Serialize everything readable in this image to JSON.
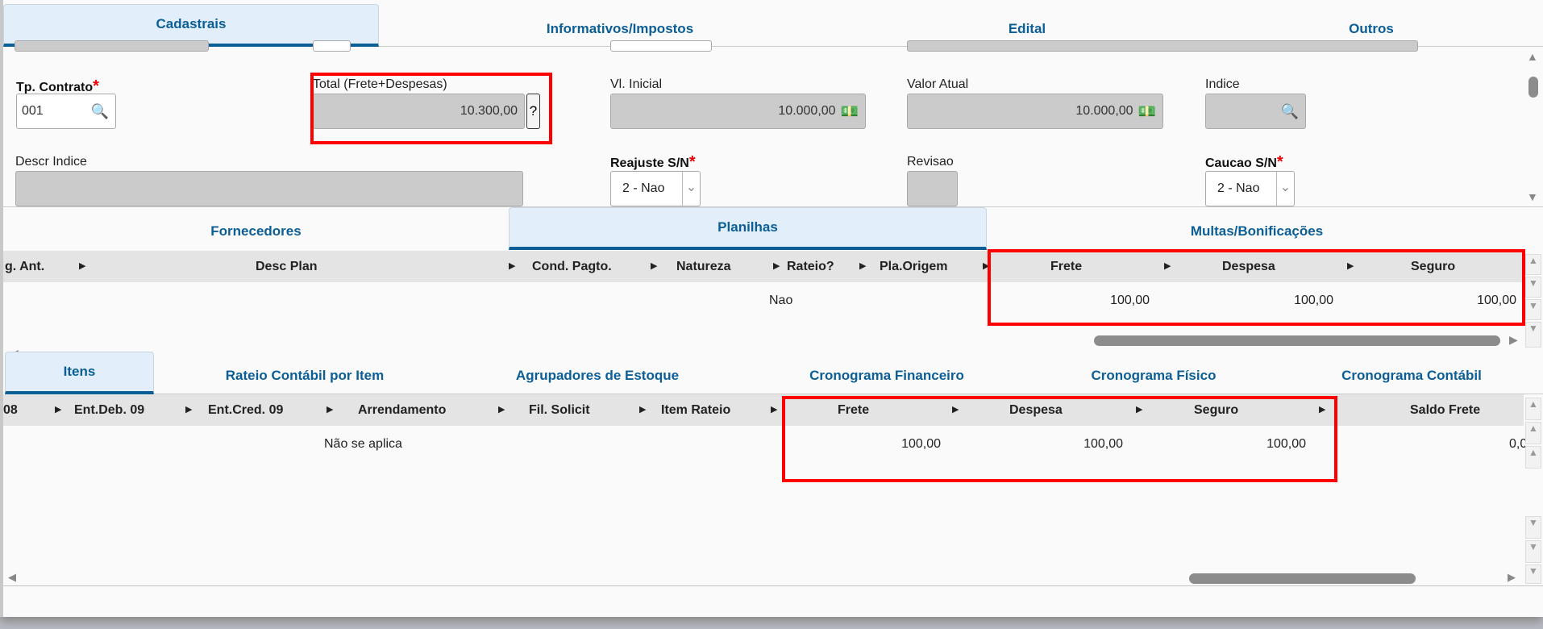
{
  "top_tabs": [
    "Cadastrais",
    "Informativos/Impostos",
    "Edital",
    "Outros"
  ],
  "form": {
    "tp_contrato": {
      "label": "Tp. Contrato",
      "value": "001"
    },
    "total": {
      "label": "Total (Frete+Despesas)",
      "value": "10.300,00",
      "help": "?"
    },
    "vl_inicial": {
      "label": "Vl. Inicial",
      "value": "10.000,00"
    },
    "valor_atual": {
      "label": "Valor Atual",
      "value": "10.000,00"
    },
    "indice": {
      "label": "Indice",
      "value": ""
    },
    "descr_indice": {
      "label": "Descr Indice",
      "value": ""
    },
    "reajuste": {
      "label": "Reajuste S/N",
      "value": "2 - Nao"
    },
    "revisao": {
      "label": "Revisao",
      "value": ""
    },
    "caucao": {
      "label": "Caucao S/N",
      "value": "2 - Nao"
    },
    "required_mark": "*"
  },
  "mid_tabs": [
    "Fornecedores",
    "Planilhas",
    "Multas/Bonificações"
  ],
  "planilhas_grid": {
    "headers": [
      "g. Ant.",
      "Desc Plan",
      "Cond. Pagto.",
      "Natureza",
      "Rateio?",
      "Pla.Origem",
      "Frete",
      "Despesa",
      "Seguro"
    ],
    "row": {
      "rateio": "Nao",
      "frete": "100,00",
      "despesa": "100,00",
      "seguro": "100,00"
    }
  },
  "bottom_tabs": [
    "Itens",
    "Rateio Contábil por Item",
    "Agrupadores de Estoque",
    "Cronograma Financeiro",
    "Cronograma Físico",
    "Cronograma Contábil"
  ],
  "itens_grid": {
    "headers": [
      "08",
      "Ent.Deb. 09",
      "Ent.Cred. 09",
      "Arrendamento",
      "Fil. Solicit",
      "Item Rateio",
      "Frete",
      "Despesa",
      "Seguro",
      "Saldo Frete"
    ],
    "row": {
      "arrendamento": "Não se aplica",
      "frete": "100,00",
      "despesa": "100,00",
      "seguro": "100,00",
      "saldo_frete": "0,0"
    }
  },
  "colors": {
    "tab_text": "#0b5e96",
    "highlight": "#ff0000",
    "required": "#ee0000"
  }
}
